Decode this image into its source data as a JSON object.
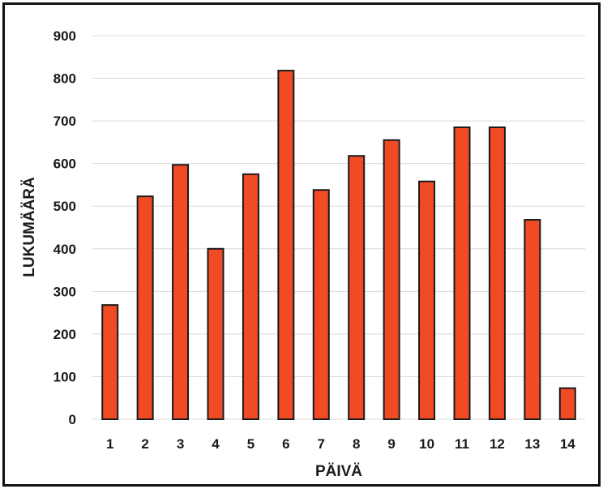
{
  "chart_data": {
    "type": "bar",
    "title": "",
    "xlabel": "PÄIVÄ",
    "ylabel": "LUKUMÄÄRÄ",
    "categories": [
      "1",
      "2",
      "3",
      "4",
      "5",
      "6",
      "7",
      "8",
      "9",
      "10",
      "11",
      "12",
      "13",
      "14"
    ],
    "values": [
      268,
      523,
      597,
      400,
      575,
      818,
      538,
      618,
      655,
      558,
      685,
      685,
      468,
      73
    ],
    "ylim": [
      0,
      900
    ],
    "yticks": [
      0,
      100,
      200,
      300,
      400,
      500,
      600,
      700,
      800,
      900
    ],
    "grid": true,
    "legend": "none",
    "bar_color": "#f04b24",
    "bar_edge_color": "#1a1a1a",
    "grid_color": "#d9d9d9"
  }
}
